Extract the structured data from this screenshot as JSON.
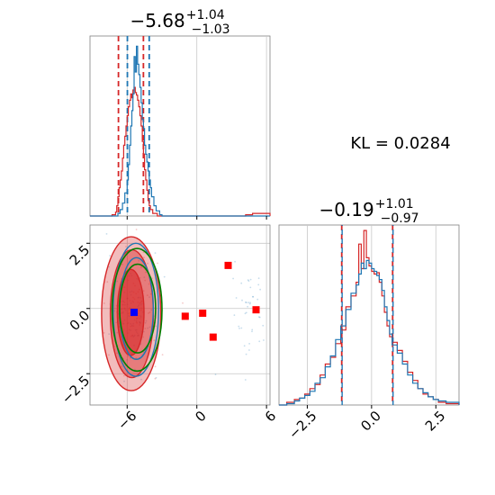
{
  "chart_data": {
    "type": "corner",
    "kl_label": "KL = 0.0284",
    "colors": {
      "sample_a": "#d62728",
      "sample_b": "#1f77b4",
      "truth_2d": "#008000",
      "marker_sq": "#ff0000",
      "marker_truth": "#0000ff",
      "grid": "#c8c8c8",
      "frame": "#808080"
    },
    "param1": {
      "title": {
        "median": "−5.68",
        "plus": "+1.04",
        "minus": "−1.03"
      },
      "xlim": [
        -9.2,
        6.3
      ],
      "ticks": [
        -6,
        0,
        6
      ],
      "tick_labels": [
        "−6",
        "0",
        "6"
      ],
      "gridlines": [
        -6,
        0,
        6
      ],
      "quantiles_red": [
        -6.75,
        -4.6
      ],
      "quantiles_blue": [
        -5.98,
        -4.1
      ],
      "hist_red": [
        [
          -9.2,
          0
        ],
        [
          -7.6,
          0
        ],
        [
          -7.3,
          1
        ],
        [
          -7.0,
          3
        ],
        [
          -6.9,
          8
        ],
        [
          -6.8,
          15
        ],
        [
          -6.7,
          22
        ],
        [
          -6.6,
          28
        ],
        [
          -6.5,
          35
        ],
        [
          -6.4,
          45
        ],
        [
          -6.3,
          55
        ],
        [
          -6.2,
          62
        ],
        [
          -6.1,
          70
        ],
        [
          -6.0,
          78
        ],
        [
          -5.9,
          85
        ],
        [
          -5.8,
          90
        ],
        [
          -5.7,
          95
        ],
        [
          -5.6,
          92
        ],
        [
          -5.5,
          98
        ],
        [
          -5.4,
          100
        ],
        [
          -5.3,
          96
        ],
        [
          -5.2,
          94
        ],
        [
          -5.1,
          90
        ],
        [
          -5.0,
          85
        ],
        [
          -4.9,
          78
        ],
        [
          -4.8,
          70
        ],
        [
          -4.7,
          58
        ],
        [
          -4.6,
          48
        ],
        [
          -4.5,
          36
        ],
        [
          -4.4,
          28
        ],
        [
          -4.3,
          20
        ],
        [
          -4.2,
          12
        ],
        [
          -4.1,
          8
        ],
        [
          -4.0,
          5
        ],
        [
          -3.8,
          2
        ],
        [
          -3.4,
          0
        ],
        [
          4.0,
          0
        ],
        [
          4.2,
          1
        ],
        [
          4.8,
          2
        ],
        [
          5.3,
          2
        ],
        [
          6.3,
          0
        ]
      ],
      "hist_blue": [
        [
          -9.2,
          0
        ],
        [
          -7.0,
          0
        ],
        [
          -6.8,
          2
        ],
        [
          -6.6,
          5
        ],
        [
          -6.4,
          10
        ],
        [
          -6.2,
          18
        ],
        [
          -6.0,
          28
        ],
        [
          -5.9,
          40
        ],
        [
          -5.8,
          55
        ],
        [
          -5.7,
          70
        ],
        [
          -5.6,
          82
        ],
        [
          -5.5,
          95
        ],
        [
          -5.4,
          124
        ],
        [
          -5.3,
          112
        ],
        [
          -5.2,
          132
        ],
        [
          -5.1,
          118
        ],
        [
          -5.0,
          110
        ],
        [
          -4.9,
          100
        ],
        [
          -4.8,
          88
        ],
        [
          -4.7,
          75
        ],
        [
          -4.6,
          68
        ],
        [
          -4.5,
          55
        ],
        [
          -4.4,
          48
        ],
        [
          -4.3,
          42
        ],
        [
          -4.2,
          35
        ],
        [
          -4.1,
          28
        ],
        [
          -4.0,
          22
        ],
        [
          -3.9,
          15
        ],
        [
          -3.7,
          8
        ],
        [
          -3.5,
          4
        ],
        [
          -3.2,
          1
        ],
        [
          -3.0,
          0
        ],
        [
          6.3,
          0
        ]
      ],
      "hist_ymax": 140
    },
    "param2": {
      "title": {
        "median": "−0.19",
        "plus": "+1.01",
        "minus": "−0.97"
      },
      "xlim": [
        -3.6,
        3.4
      ],
      "ticks": [
        -2.5,
        0.0,
        2.5
      ],
      "tick_labels": [
        "−2.5",
        "0.0",
        "2.5"
      ],
      "gridlines": [
        -2.5,
        0.0,
        2.5
      ],
      "quantiles_red": [
        -1.16,
        0.82
      ],
      "quantiles_blue": [
        -1.18,
        0.8
      ],
      "hist_red": [
        [
          -3.6,
          0
        ],
        [
          -3.3,
          2
        ],
        [
          -3.0,
          4
        ],
        [
          -2.8,
          5
        ],
        [
          -2.6,
          8
        ],
        [
          -2.4,
          12
        ],
        [
          -2.2,
          15
        ],
        [
          -2.0,
          22
        ],
        [
          -1.8,
          30
        ],
        [
          -1.6,
          35
        ],
        [
          -1.4,
          45
        ],
        [
          -1.2,
          55
        ],
        [
          -1.0,
          72
        ],
        [
          -0.8,
          80
        ],
        [
          -0.6,
          90
        ],
        [
          -0.5,
          118
        ],
        [
          -0.4,
          100
        ],
        [
          -0.3,
          128
        ],
        [
          -0.2,
          108
        ],
        [
          -0.1,
          102
        ],
        [
          0.0,
          98
        ],
        [
          0.1,
          96
        ],
        [
          0.2,
          97
        ],
        [
          0.3,
          90
        ],
        [
          0.4,
          80
        ],
        [
          0.5,
          68
        ],
        [
          0.6,
          58
        ],
        [
          0.7,
          50
        ],
        [
          0.8,
          46
        ],
        [
          1.0,
          40
        ],
        [
          1.2,
          32
        ],
        [
          1.4,
          24
        ],
        [
          1.6,
          18
        ],
        [
          1.8,
          12
        ],
        [
          2.0,
          8
        ],
        [
          2.2,
          6
        ],
        [
          2.4,
          4
        ],
        [
          2.6,
          2
        ],
        [
          2.9,
          1
        ],
        [
          3.4,
          0
        ]
      ],
      "hist_blue": [
        [
          -3.6,
          0
        ],
        [
          -3.3,
          1
        ],
        [
          -3.0,
          3
        ],
        [
          -2.8,
          5
        ],
        [
          -2.6,
          7
        ],
        [
          -2.4,
          10
        ],
        [
          -2.2,
          16
        ],
        [
          -2.0,
          20
        ],
        [
          -1.8,
          28
        ],
        [
          -1.6,
          36
        ],
        [
          -1.4,
          48
        ],
        [
          -1.2,
          58
        ],
        [
          -1.0,
          70
        ],
        [
          -0.8,
          82
        ],
        [
          -0.6,
          88
        ],
        [
          -0.5,
          96
        ],
        [
          -0.4,
          104
        ],
        [
          -0.3,
          100
        ],
        [
          -0.2,
          106
        ],
        [
          -0.1,
          104
        ],
        [
          0.0,
          100
        ],
        [
          0.1,
          98
        ],
        [
          0.2,
          95
        ],
        [
          0.3,
          92
        ],
        [
          0.4,
          84
        ],
        [
          0.5,
          72
        ],
        [
          0.6,
          62
        ],
        [
          0.7,
          52
        ],
        [
          0.8,
          44
        ],
        [
          1.0,
          38
        ],
        [
          1.2,
          30
        ],
        [
          1.4,
          22
        ],
        [
          1.6,
          16
        ],
        [
          1.8,
          12
        ],
        [
          2.0,
          9
        ],
        [
          2.2,
          6
        ],
        [
          2.4,
          4
        ],
        [
          2.6,
          3
        ],
        [
          2.9,
          2
        ],
        [
          3.4,
          0
        ]
      ],
      "hist_ymax": 132
    },
    "joint": {
      "xlim": [
        -9.2,
        6.3
      ],
      "ylim": [
        -3.7,
        3.2
      ],
      "yticks": [
        -2.5,
        0.0,
        2.5
      ],
      "ytick_labels": [
        "−2.5",
        "0.0",
        "2.5"
      ],
      "gridlines_y": [
        -2.5,
        0.0,
        2.5
      ],
      "red_levels": [
        {
          "cx": -5.7,
          "cy": -0.15,
          "rx": 1.15,
          "ry": 1.65
        },
        {
          "cx": -5.6,
          "cy": -0.2,
          "rx": 1.85,
          "ry": 2.45
        },
        {
          "cx": -5.65,
          "cy": -0.2,
          "rx": 2.55,
          "ry": 2.95
        }
      ],
      "blue_levels": [
        {
          "cx": -5.2,
          "cy": 0.0,
          "rx": 1.45,
          "ry": 1.95
        },
        {
          "cx": -5.25,
          "cy": -0.05,
          "rx": 1.95,
          "ry": 2.55
        }
      ],
      "green_levels": [
        {
          "cx": -5.1,
          "cy": 0.0,
          "rx": 1.55,
          "ry": 1.7
        },
        {
          "cx": -5.15,
          "cy": -0.05,
          "rx": 2.15,
          "ry": 2.35
        }
      ],
      "squares": [
        [
          -1.0,
          -0.3
        ],
        [
          0.5,
          -0.18
        ],
        [
          1.4,
          -1.1
        ],
        [
          2.7,
          1.65
        ],
        [
          5.1,
          -0.05
        ]
      ],
      "truth": [
        -5.4,
        -0.15
      ]
    }
  }
}
